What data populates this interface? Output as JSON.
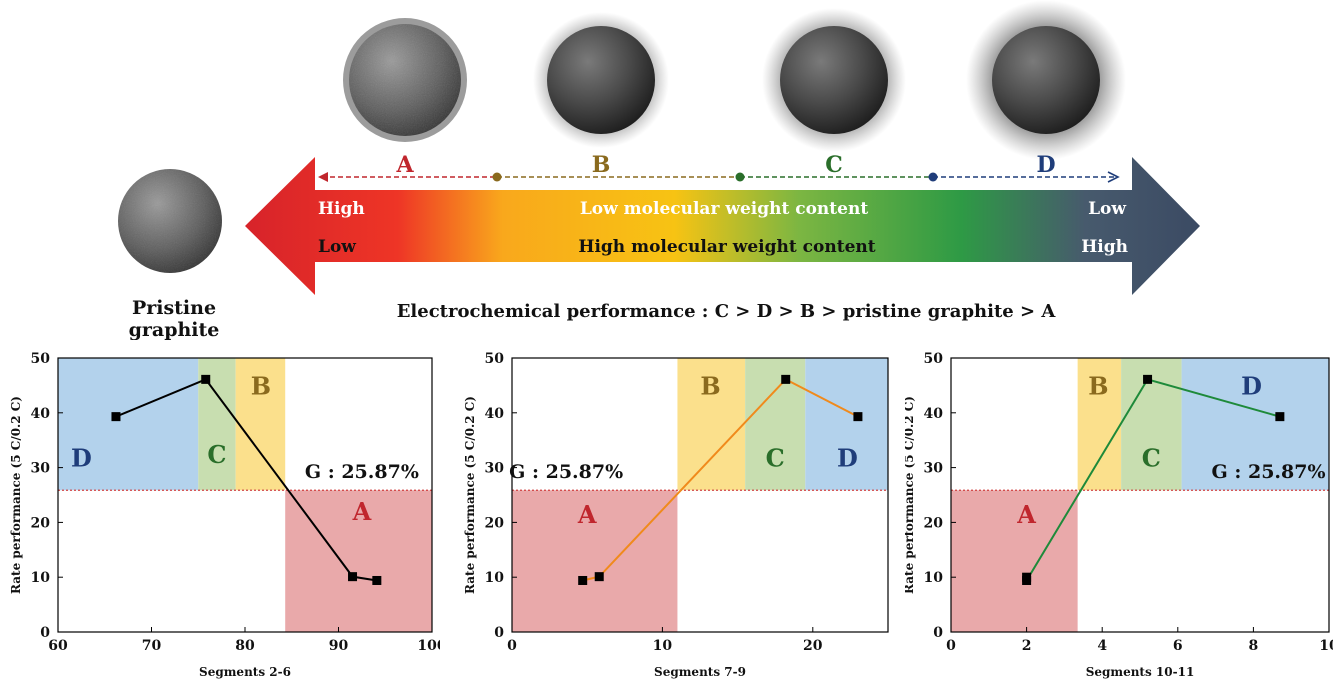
{
  "legend": {
    "labels": [
      "A",
      "B",
      "C",
      "D"
    ],
    "label_colors": [
      "#c0262d",
      "#8a6a1e",
      "#2a6e2a",
      "#1f3d7a"
    ],
    "left_top": "High",
    "left_bottom": "Low",
    "right_top": "Low",
    "right_bottom": "High",
    "middle_top": "Low molecular weight content",
    "middle_bottom": "High molecular weight content",
    "pristine_label_line1": "Pristine",
    "pristine_label_line2": "graphite",
    "performance": "Electrochemical performance : C > D > B > pristine graphite  > A"
  },
  "colors": {
    "region_A": "#e9a9aa",
    "region_B": "#fbe08c",
    "region_C": "#c8deb0",
    "region_D": "#b3d2ec",
    "threshold_line": "#d04040"
  },
  "chart_data": [
    {
      "type": "line",
      "xlabel": "Segments 2-6",
      "ylabel": "Rate performance  (5 C/0.2 C)",
      "xlim": [
        60,
        100
      ],
      "ylim": [
        0,
        50
      ],
      "xticks": [
        60,
        70,
        80,
        90,
        100
      ],
      "yticks": [
        0,
        10,
        20,
        30,
        40,
        50
      ],
      "line_color": "#000000",
      "x": [
        66.2,
        75.8,
        91.5,
        94.1
      ],
      "y": [
        39.3,
        46.1,
        10.1,
        9.4
      ],
      "threshold": 25.87,
      "threshold_label": "G : 25.87%",
      "regions": [
        {
          "label": "D",
          "x0": 60,
          "x1": 75,
          "y0": 25.87,
          "y1": 50,
          "fill": "D"
        },
        {
          "label": "C",
          "x0": 75,
          "x1": 79,
          "y0": 25.87,
          "y1": 50,
          "fill": "C"
        },
        {
          "label": "B",
          "x0": 79,
          "x1": 84.3,
          "y0": 25.87,
          "y1": 50,
          "fill": "B"
        },
        {
          "label": "A",
          "x0": 84.3,
          "x1": 100,
          "y0": 0,
          "y1": 25.87,
          "fill": "A"
        }
      ],
      "region_labels": [
        {
          "text": "D",
          "x": 62.5,
          "y": 30.2,
          "fill": "D"
        },
        {
          "text": "C",
          "x": 77,
          "y": 30.8,
          "fill": "C"
        },
        {
          "text": "B",
          "x": 81.7,
          "y": 43.3,
          "fill": "B"
        },
        {
          "text": "A",
          "x": 92.5,
          "y": 20.4,
          "fill": "A"
        }
      ],
      "threshold_label_pos": {
        "x": 92.5,
        "y": 28.1
      }
    },
    {
      "type": "line",
      "xlabel": "Segments 7-9",
      "ylabel": "Rate performance  (5 C/0.2 C)",
      "xlim": [
        0,
        25
      ],
      "ylim": [
        0,
        50
      ],
      "xticks": [
        0,
        10,
        20
      ],
      "yticks": [
        0,
        10,
        20,
        30,
        40,
        50
      ],
      "line_color": "#f08a1c",
      "x": [
        4.7,
        5.8,
        18.2,
        23
      ],
      "y": [
        9.4,
        10.1,
        46.1,
        39.3
      ],
      "threshold": 25.87,
      "threshold_label": "G : 25.87%",
      "regions": [
        {
          "label": "A",
          "x0": 0,
          "x1": 11,
          "y0": 0,
          "y1": 25.87,
          "fill": "A"
        },
        {
          "label": "B",
          "x0": 11,
          "x1": 15.5,
          "y0": 25.87,
          "y1": 50,
          "fill": "B"
        },
        {
          "label": "C",
          "x0": 15.5,
          "x1": 19.5,
          "y0": 25.87,
          "y1": 50,
          "fill": "C"
        },
        {
          "label": "D",
          "x0": 19.5,
          "x1": 25,
          "y0": 25.87,
          "y1": 50,
          "fill": "D"
        }
      ],
      "region_labels": [
        {
          "text": "A",
          "x": 5,
          "y": 19.9,
          "fill": "A"
        },
        {
          "text": "B",
          "x": 13.2,
          "y": 43.3,
          "fill": "B"
        },
        {
          "text": "C",
          "x": 17.5,
          "y": 30.2,
          "fill": "C"
        },
        {
          "text": "D",
          "x": 22.3,
          "y": 30.2,
          "fill": "D"
        }
      ],
      "threshold_label_pos": {
        "x": 3.6,
        "y": 28.1
      }
    },
    {
      "type": "line",
      "xlabel": "Segments 10-11",
      "ylabel": "Rate performance  (5 C/0.2 C)",
      "xlim": [
        0,
        10
      ],
      "ylim": [
        0,
        50
      ],
      "xticks": [
        0,
        2,
        4,
        6,
        8,
        10
      ],
      "yticks": [
        0,
        10,
        20,
        30,
        40,
        50
      ],
      "line_color": "#1e8a3a",
      "x": [
        2,
        2,
        5.2,
        8.7
      ],
      "y": [
        10,
        9.4,
        46.1,
        39.3
      ],
      "threshold": 25.87,
      "threshold_label": "G : 25.87%",
      "regions": [
        {
          "label": "A",
          "x0": 0,
          "x1": 3.35,
          "y0": 0,
          "y1": 25.87,
          "fill": "A"
        },
        {
          "label": "B",
          "x0": 3.35,
          "x1": 4.5,
          "y0": 25.87,
          "y1": 50,
          "fill": "B"
        },
        {
          "label": "C",
          "x0": 4.5,
          "x1": 6.1,
          "y0": 25.87,
          "y1": 50,
          "fill": "C"
        },
        {
          "label": "D",
          "x0": 6.1,
          "x1": 10,
          "y0": 25.87,
          "y1": 50,
          "fill": "D"
        }
      ],
      "region_labels": [
        {
          "text": "A",
          "x": 2,
          "y": 19.9,
          "fill": "A"
        },
        {
          "text": "B",
          "x": 3.9,
          "y": 43.3,
          "fill": "B"
        },
        {
          "text": "C",
          "x": 5.3,
          "y": 30.2,
          "fill": "C"
        },
        {
          "text": "D",
          "x": 7.95,
          "y": 43.3,
          "fill": "D"
        }
      ],
      "threshold_label_pos": {
        "x": 8.4,
        "y": 28.1
      }
    }
  ]
}
